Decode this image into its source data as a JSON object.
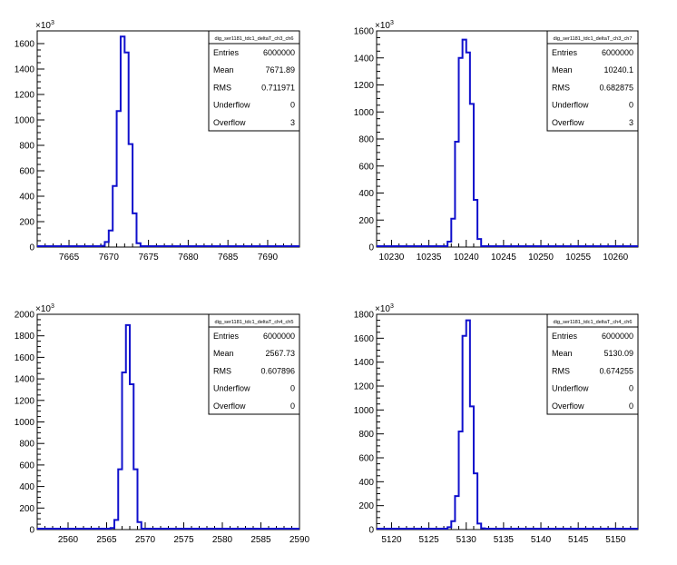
{
  "chart_data": [
    {
      "type": "histogram",
      "exponent_label": "×10³",
      "xlim": [
        7661,
        7694
      ],
      "ylim": [
        0,
        1700
      ],
      "x_ticks": [
        7665,
        7670,
        7675,
        7680,
        7685,
        7690
      ],
      "y_ticks": [
        0,
        200,
        400,
        600,
        800,
        1000,
        1200,
        1400,
        1600
      ],
      "bin_width": 0.5,
      "bins_x": [
        7668.5,
        7669,
        7669.5,
        7670,
        7670.5,
        7671,
        7671.5,
        7672,
        7672.5,
        7673,
        7673.5,
        7674,
        7674.5
      ],
      "bins_y": [
        2,
        10,
        40,
        130,
        480,
        1070,
        1655,
        1530,
        810,
        265,
        30,
        4,
        0
      ],
      "stats": {
        "name": "dig_ser1181_tdc1_deltaT_ch3_ch6",
        "rows": [
          {
            "label": "Entries",
            "value": "6000000"
          },
          {
            "label": "Mean",
            "value": "7671.89"
          },
          {
            "label": "RMS",
            "value": "0.711971"
          },
          {
            "label": "Underflow",
            "value": "0"
          },
          {
            "label": "Overflow",
            "value": "3"
          }
        ]
      }
    },
    {
      "type": "histogram",
      "exponent_label": "×10³",
      "xlim": [
        10228,
        10263
      ],
      "ylim": [
        0,
        1600
      ],
      "x_ticks": [
        10230,
        10235,
        10240,
        10245,
        10250,
        10255,
        10260
      ],
      "y_ticks": [
        0,
        200,
        400,
        600,
        800,
        1000,
        1200,
        1400,
        1600
      ],
      "bin_width": 0.5,
      "bins_x": [
        10237,
        10237.5,
        10238,
        10238.5,
        10239,
        10239.5,
        10240,
        10240.5,
        10241,
        10241.5,
        10242,
        10242.5
      ],
      "bins_y": [
        3,
        40,
        210,
        780,
        1400,
        1535,
        1440,
        1060,
        350,
        60,
        5,
        0
      ],
      "stats": {
        "name": "dig_ser1181_tdc1_deltaT_ch3_ch7",
        "rows": [
          {
            "label": "Entries",
            "value": "6000000"
          },
          {
            "label": "Mean",
            "value": "10240.1"
          },
          {
            "label": "RMS",
            "value": "0.682875"
          },
          {
            "label": "Underflow",
            "value": "0"
          },
          {
            "label": "Overflow",
            "value": "3"
          }
        ]
      }
    },
    {
      "type": "histogram",
      "exponent_label": "×10³",
      "xlim": [
        2556,
        2590
      ],
      "ylim": [
        0,
        2000
      ],
      "x_ticks": [
        2560,
        2565,
        2570,
        2575,
        2580,
        2585,
        2590
      ],
      "y_ticks": [
        0,
        200,
        400,
        600,
        800,
        1000,
        1200,
        1400,
        1600,
        1800,
        2000
      ],
      "bin_width": 0.5,
      "bins_x": [
        2565,
        2565.5,
        2566,
        2566.5,
        2567,
        2567.5,
        2568,
        2568.5,
        2569,
        2569.5,
        2570
      ],
      "bins_y": [
        5,
        15,
        90,
        560,
        1460,
        1900,
        1350,
        560,
        70,
        5,
        0
      ],
      "stats": {
        "name": "dig_ser1181_tdc1_deltaT_ch4_ch5",
        "rows": [
          {
            "label": "Entries",
            "value": "6000000"
          },
          {
            "label": "Mean",
            "value": "2567.73"
          },
          {
            "label": "RMS",
            "value": "0.607896"
          },
          {
            "label": "Underflow",
            "value": "0"
          },
          {
            "label": "Overflow",
            "value": "0"
          }
        ]
      }
    },
    {
      "type": "histogram",
      "exponent_label": "×10³",
      "xlim": [
        5118,
        5153
      ],
      "ylim": [
        0,
        1800
      ],
      "x_ticks": [
        5120,
        5125,
        5130,
        5135,
        5140,
        5145,
        5150
      ],
      "y_ticks": [
        0,
        200,
        400,
        600,
        800,
        1000,
        1200,
        1400,
        1600,
        1800
      ],
      "bin_width": 0.5,
      "bins_x": [
        5127,
        5127.5,
        5128,
        5128.5,
        5129,
        5129.5,
        5130,
        5130.5,
        5131,
        5131.5,
        5132,
        5132.5
      ],
      "bins_y": [
        2,
        20,
        70,
        280,
        820,
        1620,
        1750,
        1030,
        470,
        50,
        10,
        0
      ],
      "stats": {
        "name": "dig_ser1181_tdc1_deltaT_ch4_ch6",
        "rows": [
          {
            "label": "Entries",
            "value": "6000000"
          },
          {
            "label": "Mean",
            "value": "5130.09"
          },
          {
            "label": "RMS",
            "value": "0.674255"
          },
          {
            "label": "Underflow",
            "value": "0"
          },
          {
            "label": "Overflow",
            "value": "0"
          }
        ]
      }
    }
  ],
  "colors": {
    "histogram_line": "#1010cc",
    "axis": "#000000",
    "background": "#ffffff"
  }
}
